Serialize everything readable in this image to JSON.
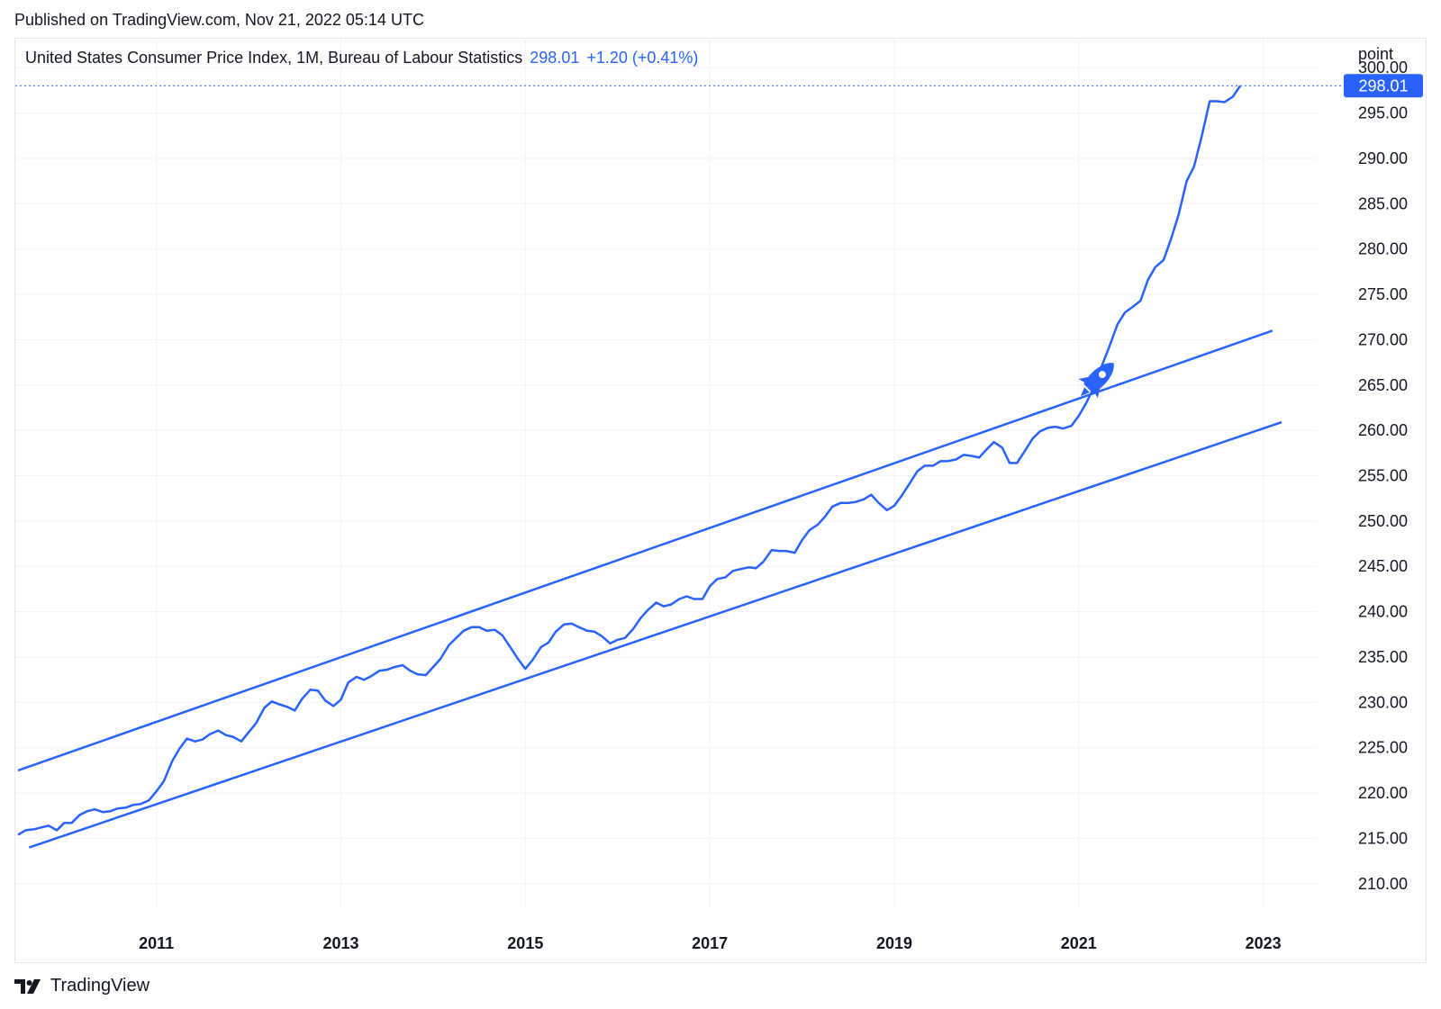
{
  "header": {
    "published": "Published on TradingView.com, Nov 21, 2022 05:14 UTC"
  },
  "legend": {
    "symbol": "United States Consumer Price Index, 1M, Bureau of Labour Statistics",
    "last": "298.01",
    "change": "+1.20 (+0.41%)"
  },
  "footer": {
    "brand": "TradingView"
  },
  "colors": {
    "line": "#2962ff",
    "grid": "#f0f3fa",
    "text": "#131722"
  },
  "chart_data": {
    "type": "line",
    "ylabel": "point",
    "ylim": [
      207.2,
      303.3
    ],
    "xlim": [
      2009.47,
      2023.58
    ],
    "y_ticks": [
      "210.00",
      "215.00",
      "220.00",
      "225.00",
      "230.00",
      "235.00",
      "240.00",
      "245.00",
      "250.00",
      "255.00",
      "260.00",
      "265.00",
      "270.00",
      "275.00",
      "280.00",
      "285.00",
      "290.00",
      "295.00",
      "300.00"
    ],
    "x_ticks": [
      "2011",
      "2013",
      "2015",
      "2017",
      "2019",
      "2021",
      "2023"
    ],
    "last_value_label": "298.01",
    "grid": true,
    "annotation_icon": "rocket-icon",
    "series": [
      {
        "x": [
          2009.5,
          2009.58,
          2009.67,
          2009.75,
          2009.83,
          2009.92,
          2010.0,
          2010.08,
          2010.17,
          2010.25,
          2010.33,
          2010.42,
          2010.5,
          2010.58,
          2010.67,
          2010.75,
          2010.83,
          2010.92,
          2011.0,
          2011.08,
          2011.17,
          2011.25,
          2011.33,
          2011.42,
          2011.5,
          2011.58,
          2011.67,
          2011.75,
          2011.83,
          2011.92,
          2012.0,
          2012.08,
          2012.17,
          2012.25,
          2012.33,
          2012.42,
          2012.5,
          2012.58,
          2012.67,
          2012.75,
          2012.83,
          2012.92,
          2013.0,
          2013.08,
          2013.17,
          2013.25,
          2013.33,
          2013.42,
          2013.5,
          2013.58,
          2013.67,
          2013.75,
          2013.83,
          2013.92,
          2014.0,
          2014.08,
          2014.17,
          2014.25,
          2014.33,
          2014.42,
          2014.5,
          2014.58,
          2014.67,
          2014.75,
          2014.83,
          2014.92,
          2015.0,
          2015.08,
          2015.17,
          2015.25,
          2015.33,
          2015.42,
          2015.5,
          2015.58,
          2015.67,
          2015.75,
          2015.83,
          2015.92,
          2016.0,
          2016.08,
          2016.17,
          2016.25,
          2016.33,
          2016.42,
          2016.5,
          2016.58,
          2016.67,
          2016.75,
          2016.83,
          2016.92,
          2017.0,
          2017.08,
          2017.17,
          2017.25,
          2017.33,
          2017.42,
          2017.5,
          2017.58,
          2017.67,
          2017.75,
          2017.83,
          2017.92,
          2018.0,
          2018.08,
          2018.17,
          2018.25,
          2018.33,
          2018.42,
          2018.5,
          2018.58,
          2018.67,
          2018.75,
          2018.83,
          2018.92,
          2019.0,
          2019.08,
          2019.17,
          2019.25,
          2019.33,
          2019.42,
          2019.5,
          2019.58,
          2019.67,
          2019.75,
          2019.83,
          2019.92,
          2020.0,
          2020.08,
          2020.17,
          2020.25,
          2020.33,
          2020.42,
          2020.5,
          2020.58,
          2020.67,
          2020.75,
          2020.83,
          2020.92,
          2021.0,
          2021.08,
          2021.17,
          2021.25,
          2021.33,
          2021.42,
          2021.5,
          2021.58,
          2021.67,
          2021.75,
          2021.83,
          2021.92,
          2022.0,
          2022.08,
          2022.17,
          2022.25,
          2022.33,
          2022.42,
          2022.5,
          2022.58,
          2022.67,
          2022.75
        ],
        "values": [
          215.4,
          215.9,
          216.0,
          216.2,
          216.4,
          215.9,
          216.7,
          216.7,
          217.6,
          218.0,
          218.2,
          217.9,
          218.0,
          218.3,
          218.4,
          218.7,
          218.8,
          219.2,
          220.2,
          221.3,
          223.5,
          224.9,
          226.0,
          225.7,
          225.9,
          226.5,
          226.9,
          226.4,
          226.2,
          225.7,
          226.7,
          227.7,
          229.4,
          230.1,
          229.8,
          229.5,
          229.1,
          230.4,
          231.4,
          231.3,
          230.2,
          229.6,
          230.3,
          232.2,
          232.8,
          232.5,
          232.9,
          233.5,
          233.6,
          233.9,
          234.1,
          233.5,
          233.1,
          233.0,
          233.9,
          234.8,
          236.3,
          237.1,
          237.9,
          238.3,
          238.3,
          237.9,
          238.0,
          237.4,
          236.2,
          234.8,
          233.7,
          234.7,
          236.1,
          236.6,
          237.8,
          238.6,
          238.7,
          238.3,
          237.9,
          237.8,
          237.3,
          236.5,
          236.9,
          237.1,
          238.1,
          239.3,
          240.2,
          241.0,
          240.6,
          240.8,
          241.4,
          241.7,
          241.4,
          241.4,
          242.8,
          243.6,
          243.8,
          244.5,
          244.7,
          244.9,
          244.8,
          245.5,
          246.8,
          246.7,
          246.7,
          246.5,
          247.9,
          249.0,
          249.6,
          250.5,
          251.6,
          252.0,
          252.0,
          252.1,
          252.4,
          252.9,
          252.0,
          251.2,
          251.7,
          252.8,
          254.2,
          255.5,
          256.1,
          256.1,
          256.6,
          256.6,
          256.8,
          257.3,
          257.2,
          257.0,
          257.9,
          258.7,
          258.1,
          256.4,
          256.4,
          257.8,
          259.1,
          259.9,
          260.3,
          260.4,
          260.2,
          260.5,
          261.6,
          263.0,
          264.9,
          267.1,
          269.2,
          271.7,
          273.0,
          273.6,
          274.3,
          276.6,
          278.0,
          278.8,
          281.1,
          283.7,
          287.5,
          289.1,
          292.3,
          296.3,
          296.3,
          296.2,
          296.8,
          298.0
        ]
      }
    ],
    "trend_lines": [
      {
        "x": [
          2009.5,
          2023.1
        ],
        "y": [
          222.5,
          271.0
        ]
      },
      {
        "x": [
          2009.62,
          2023.2
        ],
        "y": [
          214.0,
          260.9
        ]
      }
    ]
  }
}
